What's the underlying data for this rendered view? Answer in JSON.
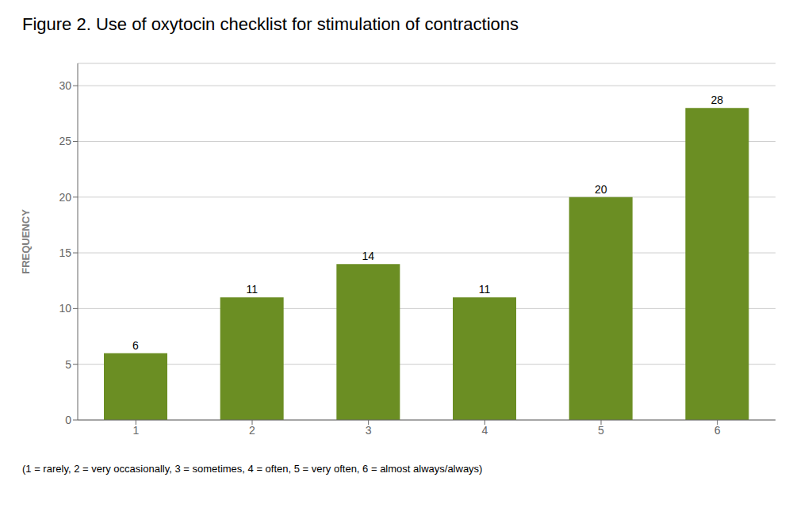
{
  "chart_data": {
    "type": "bar",
    "title": "Figure 2. Use of oxytocin checklist for stimulation of contractions",
    "categories": [
      1,
      2,
      3,
      4,
      5,
      6
    ],
    "values": [
      6,
      11,
      14,
      11,
      20,
      28
    ],
    "color": "#6b8e23",
    "ylabel": "FREQUENCY",
    "ylim": [
      0,
      32
    ],
    "yticks": [
      0,
      5,
      10,
      15,
      20,
      25,
      30
    ],
    "grid": true,
    "data_labels": true,
    "annotations": [
      "(1 = rarely, 2 = very occasionally, 3 = sometimes, 4 = often, 5 = very often, 6 = almost always/always)"
    ]
  }
}
